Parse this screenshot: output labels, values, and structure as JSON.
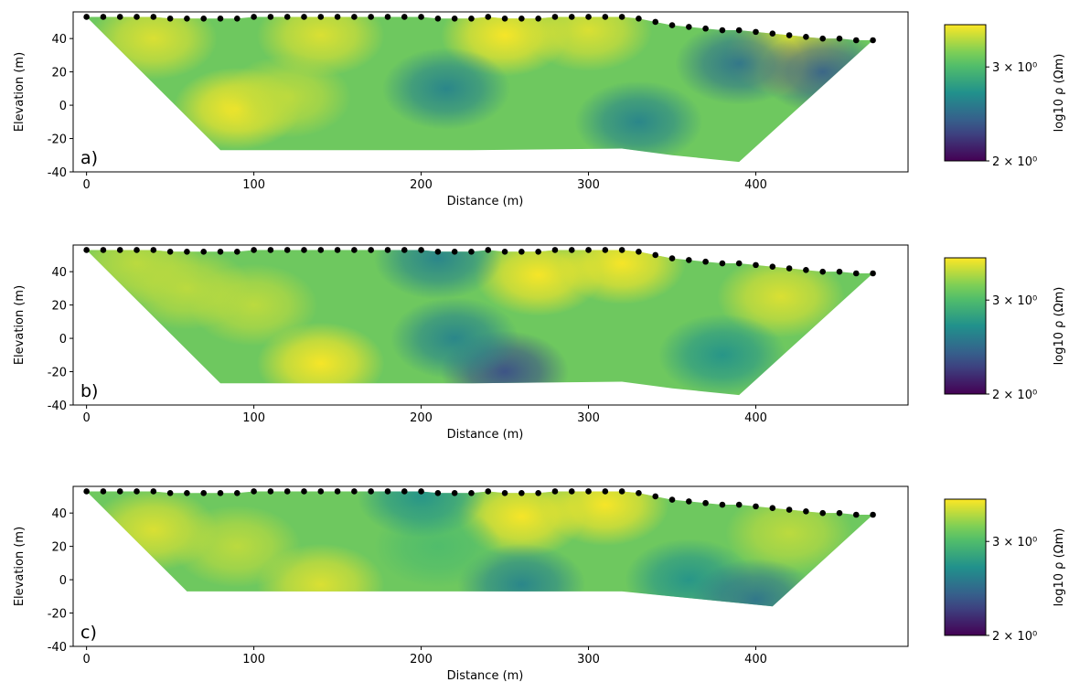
{
  "chart_data": [
    {
      "type": "section",
      "panel_label": "a)",
      "xlabel": "Distance (m)",
      "ylabel": "Elevation (m)",
      "xlim": [
        -8,
        491
      ],
      "ylim": [
        -40,
        56
      ],
      "xticks": [
        0,
        100,
        200,
        300,
        400
      ],
      "yticks": [
        -40,
        -20,
        0,
        20,
        40
      ],
      "colorbar_label": "log10 ρ (Ωm)",
      "clim": [
        2,
        3.6
      ],
      "clim_log": true,
      "cticks": [
        {
          "value": 3,
          "label": "3 × 10⁰"
        },
        {
          "value": 2,
          "label": "2 × 10⁰"
        }
      ],
      "electrodes": {
        "x": [
          0,
          10,
          20,
          30,
          40,
          50,
          60,
          70,
          80,
          90,
          100,
          110,
          120,
          130,
          140,
          150,
          160,
          170,
          180,
          190,
          200,
          210,
          220,
          230,
          240,
          250,
          260,
          270,
          280,
          290,
          300,
          310,
          320,
          330,
          340,
          350,
          360,
          370,
          380,
          390,
          400,
          410,
          420,
          430,
          440,
          450,
          460,
          470
        ],
        "elevation": [
          53,
          53,
          53,
          53,
          53,
          52,
          52,
          52,
          52,
          52,
          53,
          53,
          53,
          53,
          53,
          53,
          53,
          53,
          53,
          53,
          53,
          52,
          52,
          52,
          53,
          52,
          52,
          52,
          53,
          53,
          53,
          53,
          53,
          52,
          50,
          48,
          47,
          46,
          45,
          45,
          44,
          43,
          42,
          41,
          40,
          40,
          39,
          39
        ]
      },
      "bottom": {
        "x": [
          0,
          80,
          230,
          320,
          350,
          390,
          470
        ],
        "elevation": [
          53,
          -27,
          -27,
          -26,
          -30,
          -34,
          39
        ]
      },
      "anomalies": {
        "x": [
          90,
          140,
          250,
          300,
          420,
          390,
          215,
          330,
          440,
          40,
          120
        ],
        "elevation": [
          -2,
          42,
          42,
          45,
          30,
          25,
          10,
          -10,
          20,
          40,
          5
        ],
        "values": [
          3.6,
          3.5,
          3.6,
          3.5,
          3.6,
          2.5,
          2.6,
          2.6,
          2.4,
          3.5,
          3.4
        ]
      }
    },
    {
      "type": "section",
      "panel_label": "b)",
      "xlabel": "Distance (m)",
      "ylabel": "Elevation (m)",
      "xlim": [
        -8,
        491
      ],
      "ylim": [
        -40,
        56
      ],
      "xticks": [
        0,
        100,
        200,
        300,
        400
      ],
      "yticks": [
        -40,
        -20,
        0,
        20,
        40
      ],
      "colorbar_label": "log10 ρ (Ωm)",
      "clim": [
        2,
        3.6
      ],
      "clim_log": true,
      "cticks": [
        {
          "value": 3,
          "label": "3 × 10⁰"
        },
        {
          "value": 2,
          "label": "2 × 10⁰"
        }
      ],
      "electrodes": {
        "x": [
          0,
          10,
          20,
          30,
          40,
          50,
          60,
          70,
          80,
          90,
          100,
          110,
          120,
          130,
          140,
          150,
          160,
          170,
          180,
          190,
          200,
          210,
          220,
          230,
          240,
          250,
          260,
          270,
          280,
          290,
          300,
          310,
          320,
          330,
          340,
          350,
          360,
          370,
          380,
          390,
          400,
          410,
          420,
          430,
          440,
          450,
          460,
          470
        ],
        "elevation": [
          53,
          53,
          53,
          53,
          53,
          52,
          52,
          52,
          52,
          52,
          53,
          53,
          53,
          53,
          53,
          53,
          53,
          53,
          53,
          53,
          53,
          52,
          52,
          52,
          53,
          52,
          52,
          52,
          53,
          53,
          53,
          53,
          53,
          52,
          50,
          48,
          47,
          46,
          45,
          45,
          44,
          43,
          42,
          41,
          40,
          40,
          39,
          39
        ]
      },
      "bottom": {
        "x": [
          0,
          80,
          230,
          320,
          350,
          390,
          470
        ],
        "elevation": [
          53,
          -27,
          -27,
          -26,
          -30,
          -34,
          39
        ]
      },
      "anomalies": {
        "x": [
          140,
          100,
          270,
          320,
          415,
          250,
          220,
          380,
          30,
          210,
          60
        ],
        "elevation": [
          -15,
          20,
          38,
          45,
          25,
          -20,
          0,
          -10,
          45,
          48,
          30
        ],
        "values": [
          3.6,
          3.4,
          3.6,
          3.6,
          3.5,
          2.3,
          2.6,
          2.7,
          3.4,
          2.6,
          3.4
        ]
      }
    },
    {
      "type": "section",
      "panel_label": "c)",
      "xlabel": "Distance (m)",
      "ylabel": "Elevation (m)",
      "xlim": [
        -8,
        491
      ],
      "ylim": [
        -40,
        56
      ],
      "xticks": [
        0,
        100,
        200,
        300,
        400
      ],
      "yticks": [
        -40,
        -20,
        0,
        20,
        40
      ],
      "colorbar_label": "log10 ρ (Ωm)",
      "clim": [
        2,
        3.6
      ],
      "clim_log": true,
      "cticks": [
        {
          "value": 3,
          "label": "3 × 10⁰"
        },
        {
          "value": 2,
          "label": "2 × 10⁰"
        }
      ],
      "electrodes": {
        "x": [
          0,
          10,
          20,
          30,
          40,
          50,
          60,
          70,
          80,
          90,
          100,
          110,
          120,
          130,
          140,
          150,
          160,
          170,
          180,
          190,
          200,
          210,
          220,
          230,
          240,
          250,
          260,
          270,
          280,
          290,
          300,
          310,
          320,
          330,
          340,
          350,
          360,
          370,
          380,
          390,
          400,
          410,
          420,
          430,
          440,
          450,
          460,
          470
        ],
        "elevation": [
          53,
          53,
          53,
          53,
          53,
          52,
          52,
          52,
          52,
          52,
          53,
          53,
          53,
          53,
          53,
          53,
          53,
          53,
          53,
          53,
          53,
          52,
          52,
          52,
          53,
          52,
          52,
          52,
          53,
          53,
          53,
          53,
          53,
          52,
          50,
          48,
          47,
          46,
          45,
          45,
          44,
          43,
          42,
          41,
          40,
          40,
          39,
          39
        ]
      },
      "bottom": {
        "x": [
          0,
          60,
          230,
          320,
          350,
          410,
          470
        ],
        "elevation": [
          53,
          -7,
          -7,
          -7,
          -10,
          -16,
          39
        ]
      },
      "anomalies": {
        "x": [
          40,
          140,
          260,
          310,
          420,
          260,
          360,
          400,
          210,
          90,
          200
        ],
        "elevation": [
          30,
          -3,
          38,
          45,
          28,
          -3,
          0,
          -12,
          20,
          20,
          50
        ],
        "values": [
          3.5,
          3.5,
          3.6,
          3.6,
          3.4,
          2.6,
          2.7,
          2.5,
          3.0,
          3.4,
          2.7
        ]
      }
    }
  ]
}
